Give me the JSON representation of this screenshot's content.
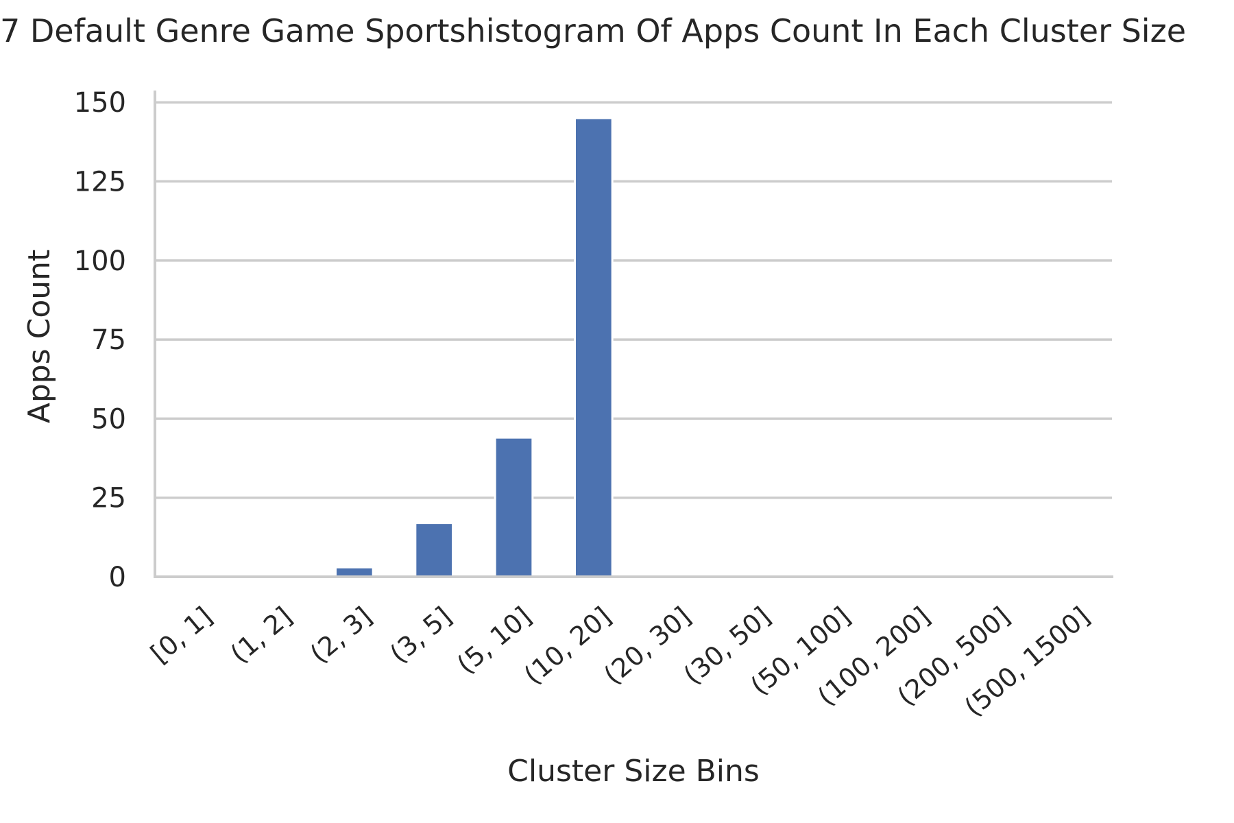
{
  "chart_data": {
    "type": "bar",
    "title": "7 Default Genre Game Sportshistogram Of Apps Count In Each Cluster Size",
    "xlabel": "Cluster Size Bins",
    "ylabel": "Apps Count",
    "categories": [
      "[0, 1]",
      "(1, 2]",
      "(2, 3]",
      "(3, 5]",
      "(5, 10]",
      "(10, 20]",
      "(20, 30]",
      "(30, 50]",
      "(50, 100]",
      "(100, 200]",
      "(200, 500]",
      "(500, 1500]"
    ],
    "values": [
      0,
      0,
      3,
      17,
      44,
      145,
      0,
      0,
      0,
      0,
      0,
      0
    ],
    "ylim": [
      0,
      152
    ],
    "yticks": [
      0,
      25,
      50,
      75,
      100,
      125,
      150
    ],
    "grid": "y",
    "bar_color": "#4c72b0",
    "legend": "none"
  }
}
